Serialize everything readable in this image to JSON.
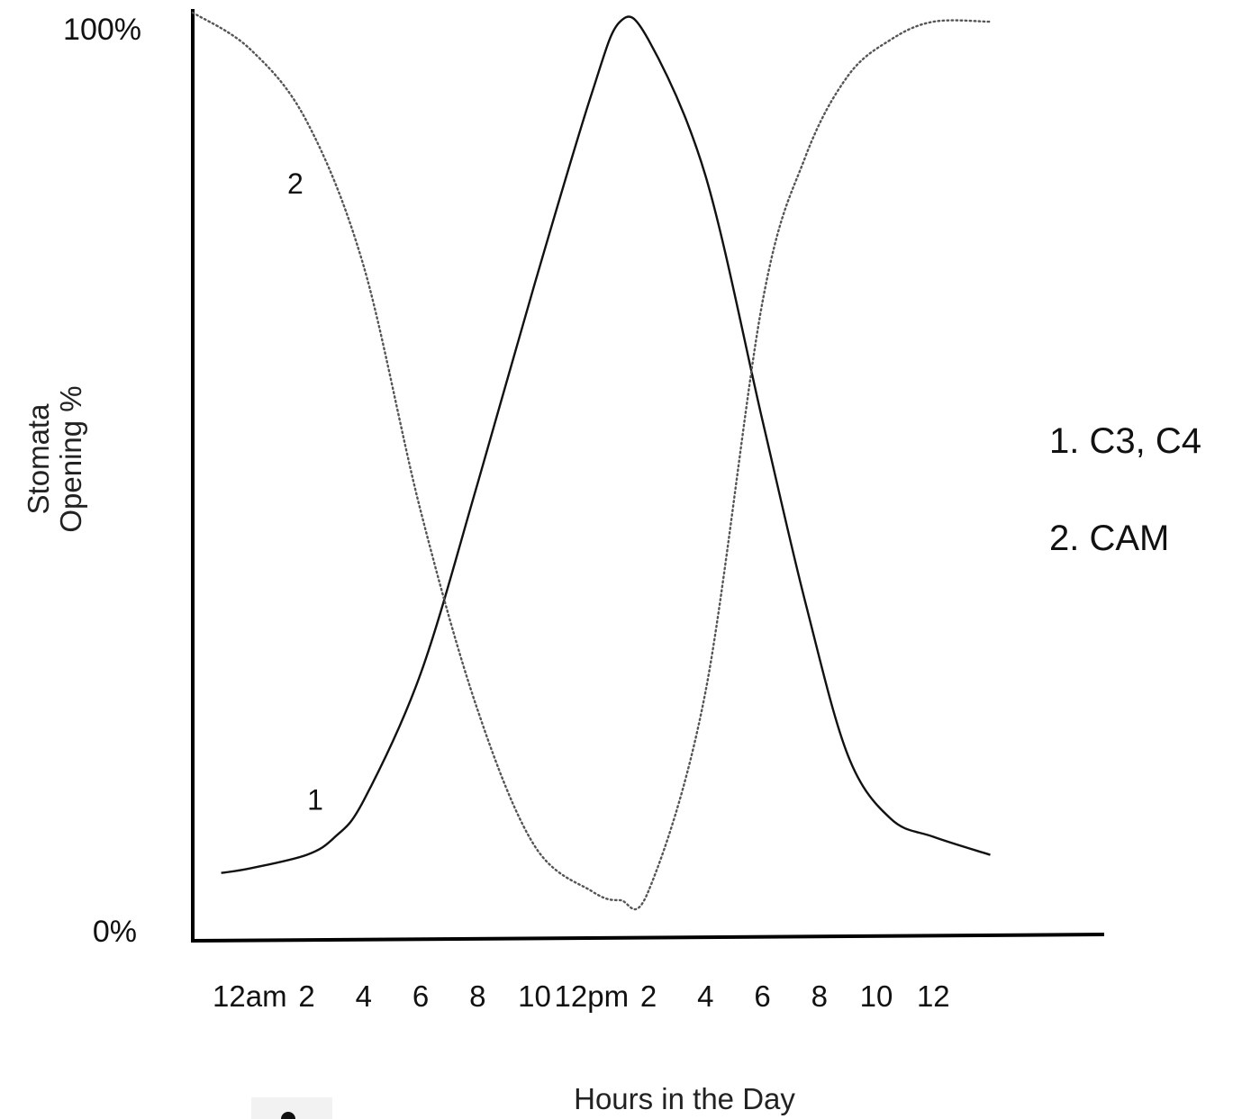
{
  "chart_data": {
    "type": "line",
    "xlabel": "Hours in the Day",
    "ylabel_lines": [
      "Stomata",
      "Opening %"
    ],
    "y_top_label": "100%",
    "y_bottom_label": "0%",
    "ylim": [
      0,
      100
    ],
    "x_tick_labels": [
      "12am",
      "2",
      "4",
      "6",
      "8",
      "10",
      "12pm",
      "2",
      "4",
      "6",
      "8",
      "10",
      "12"
    ],
    "x_tick_hours": [
      0,
      2,
      4,
      6,
      8,
      10,
      12,
      14,
      16,
      18,
      20,
      22,
      24
    ],
    "xlim": [
      -2,
      30
    ],
    "series": [
      {
        "name": "1",
        "label_hour": 2.3,
        "label_value": 12,
        "line_style": "solid",
        "color": "#111111",
        "x": [
          -1,
          0,
          2,
          3,
          4,
          6,
          8,
          10,
          12,
          13,
          14,
          16,
          18,
          19.5,
          21,
          22.5,
          24,
          26
        ],
        "y": [
          5,
          5.5,
          7,
          9,
          13,
          27,
          48,
          70,
          91,
          99,
          97,
          82,
          55,
          35,
          18,
          11,
          9,
          7
        ]
      },
      {
        "name": "2",
        "label_hour": 1.6,
        "label_value": 80,
        "line_style": "dotted",
        "color": "#555555",
        "x": [
          -2,
          0,
          2,
          4,
          6,
          8,
          10,
          12,
          13,
          14,
          16,
          18,
          19.5,
          21,
          22.5,
          24,
          26
        ],
        "y": [
          100,
          96,
          88,
          72,
          45,
          23,
          8,
          3,
          2,
          3,
          25,
          68,
          84,
          93,
          97,
          99,
          99
        ]
      }
    ]
  },
  "legend": {
    "items": [
      "1. C3, C4",
      "2. CAM"
    ]
  }
}
